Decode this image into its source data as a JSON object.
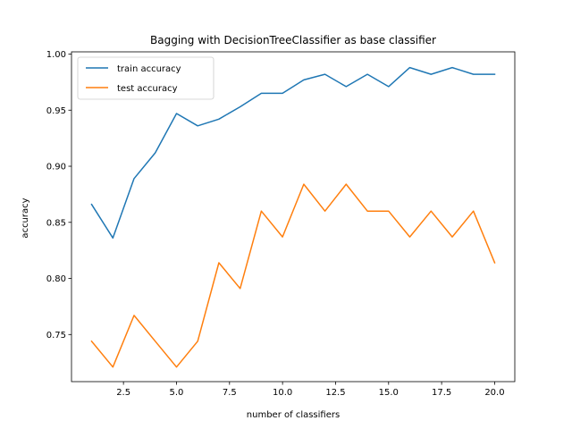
{
  "chart_data": {
    "type": "line",
    "title": "Bagging with DecisionTreeClassifier as base classifier",
    "xlabel": "number of classifiers",
    "ylabel": "accuracy",
    "xlim": [
      0.05,
      20.95
    ],
    "ylim": [
      0.708,
      1.002
    ],
    "xticks": [
      2.5,
      5.0,
      7.5,
      10.0,
      12.5,
      15.0,
      17.5,
      20.0
    ],
    "xtick_labels": [
      "2.5",
      "5.0",
      "7.5",
      "10.0",
      "12.5",
      "15.0",
      "17.5",
      "20.0"
    ],
    "yticks": [
      0.75,
      0.8,
      0.85,
      0.9,
      0.95,
      1.0
    ],
    "ytick_labels": [
      "0.75",
      "0.80",
      "0.85",
      "0.90",
      "0.95",
      "1.00"
    ],
    "x": [
      1,
      2,
      3,
      4,
      5,
      6,
      7,
      8,
      9,
      10,
      11,
      12,
      13,
      14,
      15,
      16,
      17,
      18,
      19,
      20
    ],
    "series": [
      {
        "name": "train accuracy",
        "color": "#1f77b4",
        "values": [
          0.866,
          0.836,
          0.889,
          0.912,
          0.947,
          0.936,
          0.942,
          0.953,
          0.965,
          0.965,
          0.977,
          0.982,
          0.971,
          0.982,
          0.971,
          0.988,
          0.982,
          0.988,
          0.982,
          0.982
        ]
      },
      {
        "name": "test accuracy",
        "color": "#ff7f0e",
        "values": [
          0.744,
          0.721,
          0.767,
          0.744,
          0.721,
          0.744,
          0.814,
          0.791,
          0.86,
          0.837,
          0.884,
          0.86,
          0.884,
          0.86,
          0.86,
          0.837,
          0.86,
          0.837,
          0.86,
          0.814
        ]
      }
    ],
    "legend": "upper left",
    "grid": false
  }
}
